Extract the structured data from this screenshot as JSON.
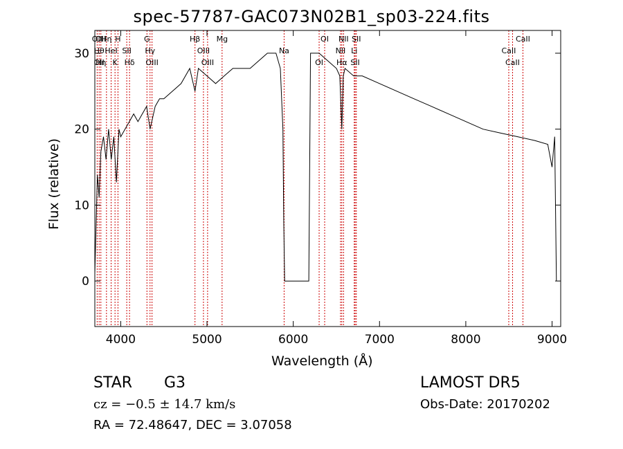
{
  "header": {
    "title": "spec-57787-GAC073N02B1_sp03-224.fits"
  },
  "footer": {
    "object_type": "STAR",
    "subclass": "G3",
    "survey": "LAMOST DR5",
    "cz": "cz = −0.5 ± 14.7 km/s",
    "obs_date": "Obs-Date: 20170202",
    "radec": "RA =  72.48647, DEC =    3.07058"
  },
  "chart_data": {
    "type": "line",
    "title": "spec-57787-GAC073N02B1_sp03-224.fits",
    "xlabel": "Wavelength (Å)",
    "ylabel": "Flux (relative)",
    "xlim": [
      3700,
      9100
    ],
    "ylim": [
      -6,
      33
    ],
    "xticks": [
      4000,
      5000,
      6000,
      7000,
      8000,
      9000
    ],
    "yticks": [
      0,
      10,
      20,
      30
    ],
    "grid": false,
    "line_color": "#000000",
    "marker_color": "#cc0000",
    "series": [
      {
        "x": [
          3700,
          3730,
          3750,
          3770,
          3800,
          3830,
          3860,
          3890,
          3920,
          3950,
          3980,
          4000,
          4050,
          4100,
          4150,
          4200,
          4250,
          4300,
          4340,
          4400,
          4450,
          4500,
          4600,
          4700,
          4800,
          4861,
          4900,
          5000,
          5100,
          5200,
          5300,
          5400,
          5500,
          5600,
          5700,
          5800,
          5850,
          5880,
          5890,
          5900,
          5910,
          6000,
          6100,
          6150,
          6180,
          6200,
          6250,
          6300,
          6400,
          6500,
          6540,
          6563,
          6580,
          6600,
          6700,
          6800,
          7000,
          7200,
          7400,
          7600,
          7800,
          8000,
          8200,
          8400,
          8600,
          8800,
          8950,
          9000,
          9030,
          9050
        ],
        "y": [
          1,
          14,
          11,
          17,
          19,
          16,
          20,
          16,
          19,
          13,
          20,
          19,
          20,
          21,
          22,
          21,
          22,
          23,
          20,
          23,
          24,
          24,
          25,
          26,
          28,
          25,
          28,
          27,
          26,
          27,
          28,
          28,
          28,
          29,
          30,
          30,
          28,
          20,
          8,
          0,
          0,
          0,
          0,
          0,
          0,
          30,
          30,
          30,
          29,
          28,
          27,
          20,
          27,
          28,
          27,
          27,
          26,
          25,
          24,
          23,
          22,
          21,
          20,
          19.5,
          19,
          18.5,
          18,
          15,
          19,
          0
        ]
      }
    ],
    "line_markers": [
      {
        "x": 3727,
        "labels": [
          "OII"
        ]
      },
      {
        "x": 3750,
        "labels": [
          "Hθ",
          "OII"
        ]
      },
      {
        "x": 3770,
        "labels": [
          "Hη",
          "OII"
        ]
      },
      {
        "x": 3835,
        "labels": [
          "Hη"
        ]
      },
      {
        "x": 3889,
        "labels": [
          "HeI"
        ]
      },
      {
        "x": 3934,
        "labels": [
          "K"
        ]
      },
      {
        "x": 3968,
        "labels": [
          "H"
        ]
      },
      {
        "x": 4070,
        "labels": [
          "SII"
        ]
      },
      {
        "x": 4102,
        "labels": [
          "Hδ"
        ]
      },
      {
        "x": 4304,
        "labels": [
          "G"
        ]
      },
      {
        "x": 4340,
        "labels": [
          "Hγ"
        ]
      },
      {
        "x": 4363,
        "labels": [
          "OIII"
        ]
      },
      {
        "x": 4861,
        "labels": [
          "Hβ"
        ]
      },
      {
        "x": 4959,
        "labels": [
          "OIII"
        ]
      },
      {
        "x": 5007,
        "labels": [
          "OIII"
        ]
      },
      {
        "x": 5175,
        "labels": [
          "Mg"
        ]
      },
      {
        "x": 5894,
        "labels": [
          "Na"
        ]
      },
      {
        "x": 6300,
        "labels": [
          "OI"
        ]
      },
      {
        "x": 6364,
        "labels": [
          "OI"
        ]
      },
      {
        "x": 6548,
        "labels": [
          "NII"
        ]
      },
      {
        "x": 6563,
        "labels": [
          "Hα"
        ]
      },
      {
        "x": 6583,
        "labels": [
          "NII"
        ]
      },
      {
        "x": 6707,
        "labels": [
          "Li"
        ]
      },
      {
        "x": 6717,
        "labels": [
          "SII"
        ]
      },
      {
        "x": 6731,
        "labels": [
          "SII"
        ]
      },
      {
        "x": 8498,
        "labels": [
          "CaII"
        ]
      },
      {
        "x": 8542,
        "labels": [
          "CaII"
        ]
      },
      {
        "x": 8662,
        "labels": [
          "CaII"
        ]
      }
    ]
  }
}
